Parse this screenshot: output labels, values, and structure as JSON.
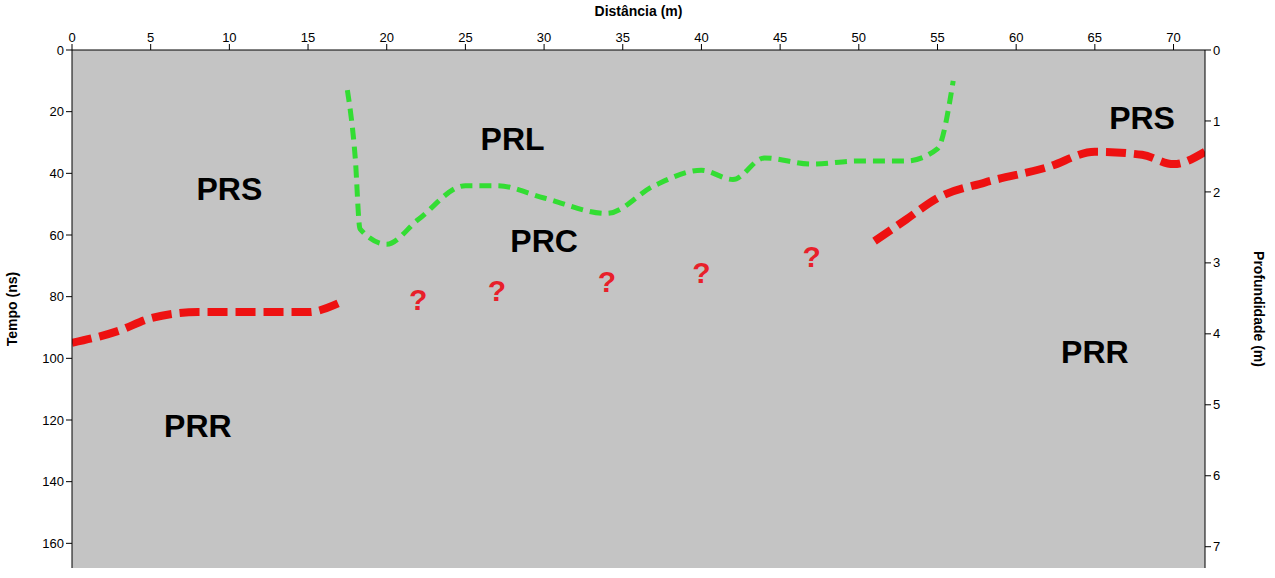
{
  "chart_data": {
    "type": "line",
    "x_label": "Distância (m)",
    "y_label": "Tempo (ns)",
    "y2_label": "Profundidade (m)",
    "xlim": [
      0,
      72
    ],
    "xticks": [
      0,
      5,
      10,
      15,
      20,
      25,
      30,
      35,
      40,
      45,
      50,
      55,
      60,
      65,
      70
    ],
    "ylim": [
      0,
      168
    ],
    "yticks": [
      0,
      20,
      40,
      60,
      80,
      100,
      120,
      140,
      160
    ],
    "y2lim": [
      0,
      7.3
    ],
    "y2ticks": [
      0,
      1,
      2,
      3,
      4,
      5,
      6,
      7
    ],
    "grid": false,
    "series": [
      {
        "color": "#33dd33",
        "line_style": "dashed",
        "x": [
          17.5,
          18,
          18.3,
          20,
          22,
          25,
          27,
          30,
          34,
          37,
          40,
          42,
          44,
          47,
          50,
          53,
          55,
          56
        ],
        "values": [
          13,
          35,
          58,
          63,
          55,
          44,
          44,
          48,
          53,
          44,
          39,
          42,
          35,
          37,
          36,
          36,
          32,
          10
        ]
      },
      {
        "color": "#ee1111",
        "line_style": "dashed",
        "x": [
          0,
          3,
          5,
          8,
          11,
          15,
          17
        ],
        "values": [
          95,
          91,
          87,
          85,
          85,
          85,
          82
        ]
      },
      {
        "color": "#ee1111",
        "line_style": "dashed",
        "x": [
          51,
          53,
          55,
          58,
          62,
          65,
          68,
          70,
          72
        ],
        "values": [
          62,
          55,
          48,
          43,
          38,
          33,
          34,
          37,
          33
        ]
      }
    ],
    "annotations": [
      {
        "text": "PRS",
        "x": 10,
        "y": 45,
        "color": "#000000"
      },
      {
        "text": "PRS",
        "x": 68,
        "y": 22,
        "color": "#000000"
      },
      {
        "text": "PRL",
        "x": 28,
        "y": 29,
        "color": "#000000"
      },
      {
        "text": "PRC",
        "x": 30,
        "y": 62,
        "color": "#000000"
      },
      {
        "text": "PRR",
        "x": 8,
        "y": 122,
        "color": "#000000"
      },
      {
        "text": "PRR",
        "x": 65,
        "y": 98,
        "color": "#000000"
      },
      {
        "text": "?",
        "x": 22,
        "y": 81,
        "color": "#e8202a"
      },
      {
        "text": "?",
        "x": 27,
        "y": 78,
        "color": "#e8202a"
      },
      {
        "text": "?",
        "x": 34,
        "y": 75,
        "color": "#e8202a"
      },
      {
        "text": "?",
        "x": 40,
        "y": 72,
        "color": "#e8202a"
      },
      {
        "text": "?",
        "x": 47,
        "y": 67,
        "color": "#e8202a"
      }
    ]
  }
}
